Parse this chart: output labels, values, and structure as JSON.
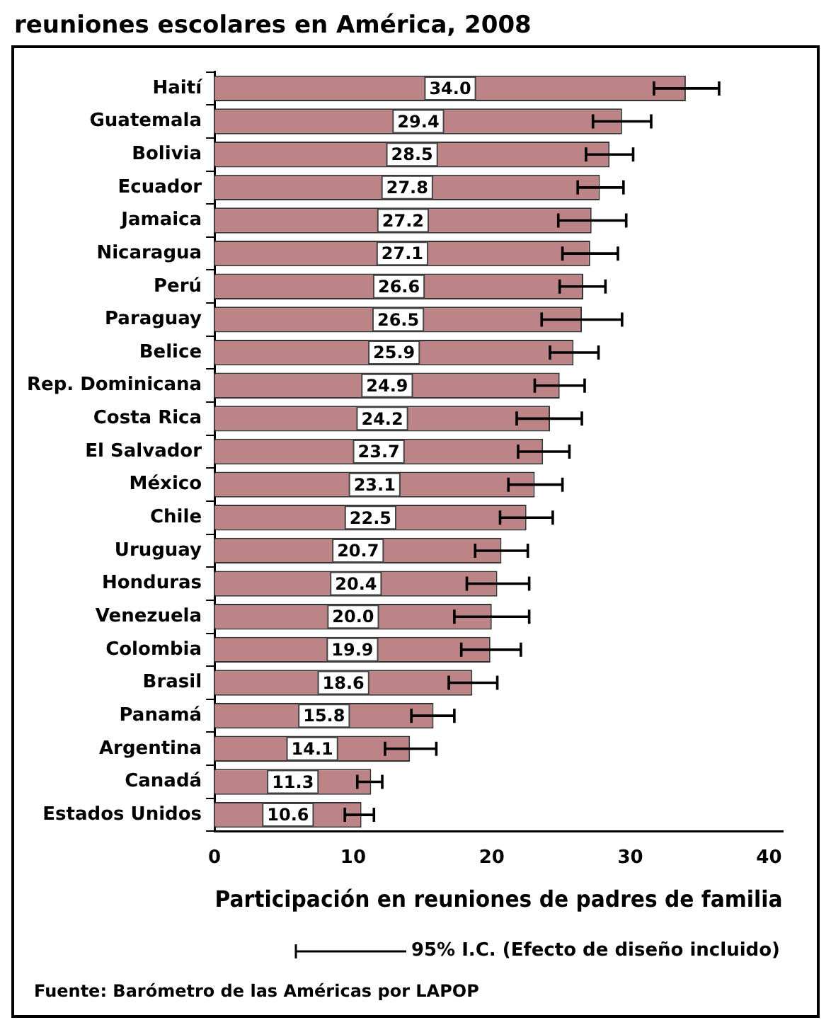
{
  "chart_data": {
    "type": "bar",
    "orientation": "horizontal",
    "title": "reuniones escolares en América, 2008",
    "xlabel": "Participación en reuniones de padres de familia",
    "categories": [
      "Haití",
      "Guatemala",
      "Bolivia",
      "Ecuador",
      "Jamaica",
      "Nicaragua",
      "Perú",
      "Paraguay",
      "Belice",
      "Rep. Dominicana",
      "Costa Rica",
      "El Salvador",
      "México",
      "Chile",
      "Uruguay",
      "Honduras",
      "Venezuela",
      "Colombia",
      "Brasil",
      "Panamá",
      "Argentina",
      "Canadá",
      "Estados Unidos"
    ],
    "values": [
      34.0,
      29.4,
      28.5,
      27.8,
      27.2,
      27.1,
      26.6,
      26.5,
      25.9,
      24.9,
      24.2,
      23.7,
      23.1,
      22.5,
      20.7,
      20.4,
      20.0,
      19.9,
      18.6,
      15.8,
      14.1,
      11.3,
      10.6
    ],
    "value_labels": [
      "34.0",
      "29.4",
      "28.5",
      "27.8",
      "27.2",
      "27.1",
      "26.6",
      "26.5",
      "25.9",
      "24.9",
      "24.2",
      "23.7",
      "23.1",
      "22.5",
      "20.7",
      "20.4",
      "20.0",
      "19.9",
      "18.6",
      "15.8",
      "14.1",
      "11.3",
      "10.6"
    ],
    "errors": [
      [
        31.7,
        36.4
      ],
      [
        27.3,
        31.5
      ],
      [
        26.8,
        30.2
      ],
      [
        26.2,
        29.5
      ],
      [
        24.8,
        29.7
      ],
      [
        25.1,
        29.1
      ],
      [
        24.9,
        28.2
      ],
      [
        23.6,
        29.4
      ],
      [
        24.2,
        27.7
      ],
      [
        23.1,
        26.7
      ],
      [
        21.8,
        26.5
      ],
      [
        21.9,
        25.6
      ],
      [
        21.2,
        25.1
      ],
      [
        20.6,
        24.4
      ],
      [
        18.8,
        22.6
      ],
      [
        18.2,
        22.7
      ],
      [
        17.3,
        22.7
      ],
      [
        17.8,
        22.1
      ],
      [
        16.9,
        20.4
      ],
      [
        14.2,
        17.3
      ],
      [
        12.3,
        16.0
      ],
      [
        10.3,
        12.1
      ],
      [
        9.4,
        11.5
      ]
    ],
    "color": "#bc8486",
    "xlim": [
      0,
      41
    ],
    "xticks": [
      0,
      10,
      20,
      30,
      40
    ],
    "grid": false,
    "annotations": [
      "95% I.C. (Efecto de diseño incluido)",
      "Fuente: Barómetro de las Américas por LAPOP"
    ]
  }
}
